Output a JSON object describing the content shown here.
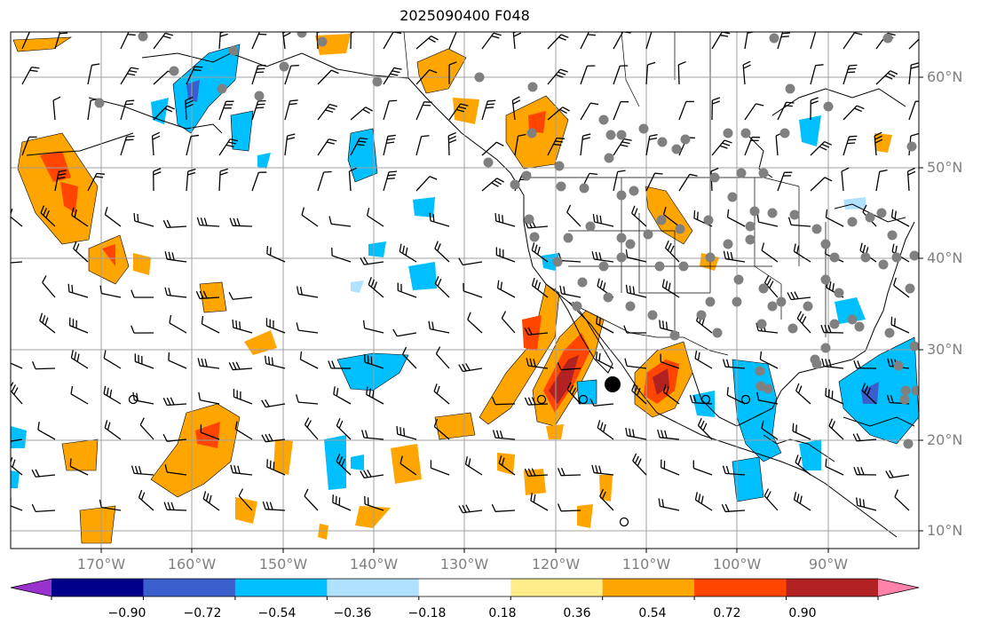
{
  "title": "2025090400 F048",
  "lat_labels": [
    "60°N",
    "50°N",
    "40°N",
    "30°N",
    "20°N",
    "10°N"
  ],
  "lon_labels": [
    "170°W",
    "160°W",
    "150°W",
    "140°W",
    "130°W",
    "120°W",
    "110°W",
    "100°W",
    "90°W"
  ],
  "colorbar": {
    "ticks": [
      "−0.90",
      "−0.72",
      "−0.54",
      "−0.36",
      "−0.18",
      "0.18",
      "0.36",
      "0.54",
      "0.72",
      "0.90"
    ],
    "colors": [
      "#9932cc",
      "#00008b",
      "#3a5fcd",
      "#00bfff",
      "#b0e2ff",
      "#ffffff",
      "#ffec8b",
      "#ffa500",
      "#ff4500",
      "#b22222",
      "#ff82ab"
    ]
  },
  "colors": {
    "land_outline": "#000000",
    "grid": "#a0a0a0",
    "station": "#808080",
    "barb": "#000000"
  },
  "map_extent": {
    "lon": [
      -178,
      -78
    ],
    "lat": [
      7,
      64
    ]
  }
}
